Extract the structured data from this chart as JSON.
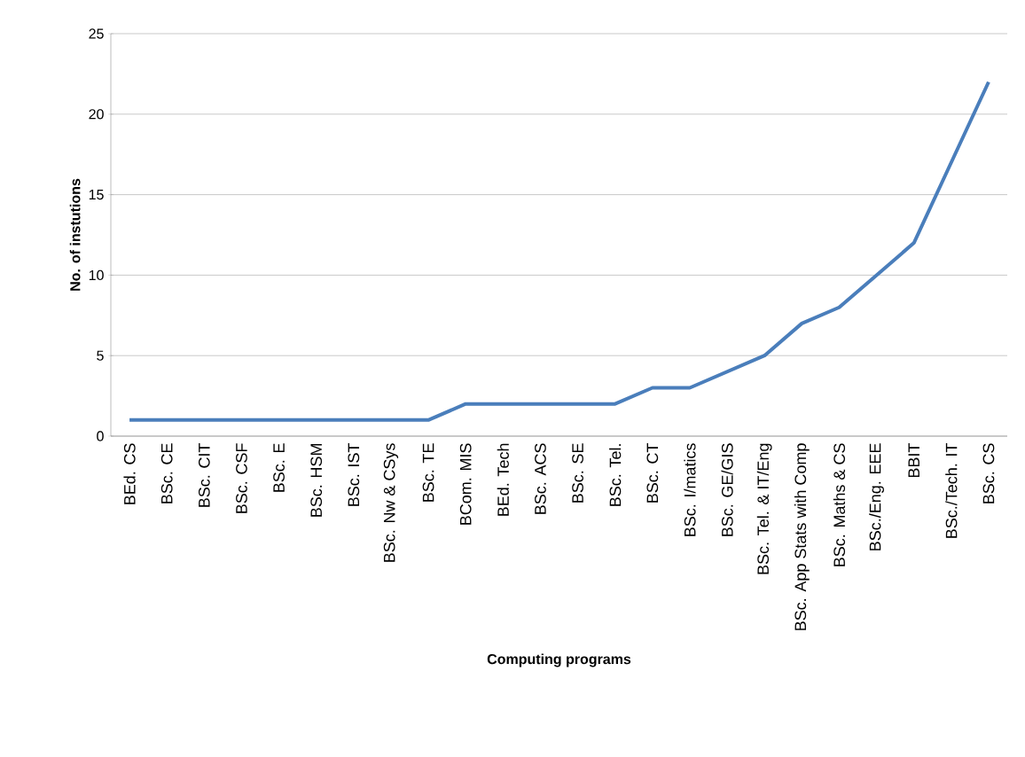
{
  "chart_data": {
    "type": "line",
    "xlabel": "Computing programs",
    "ylabel": "No. of instutions",
    "categories": [
      "BEd. CS",
      "BSc. CE",
      "BSc. CIT",
      "BSc. CSF",
      "BSc. E",
      "BSc. HSM",
      "BSc. IST",
      "BSc. Nw & CSys",
      "BSc. TE",
      "BCom. MIS",
      "BEd. Tech",
      "BSc. ACS",
      "BSc. SE",
      "BSc. Tel.",
      "BSc. CT",
      "BSc. I/matics",
      "BSc. GE/GIS",
      "BSc. Tel. & IT/Eng",
      "BSc. App Stats with Comp",
      "BSc. Maths & CS",
      "BSc./Eng. EEE",
      "BBIT",
      "BSc./Tech. IT",
      "BSc. CS"
    ],
    "values": [
      1,
      1,
      1,
      1,
      1,
      1,
      1,
      1,
      1,
      2,
      2,
      2,
      2,
      2,
      3,
      3,
      4,
      5,
      7,
      8,
      10,
      12,
      17,
      22
    ],
    "color": "#4a7ebb",
    "ylim": [
      0,
      25
    ],
    "yticks": [
      0,
      5,
      10,
      15,
      20,
      25
    ],
    "grid": "y",
    "marker": "none",
    "line_style": "solid"
  }
}
